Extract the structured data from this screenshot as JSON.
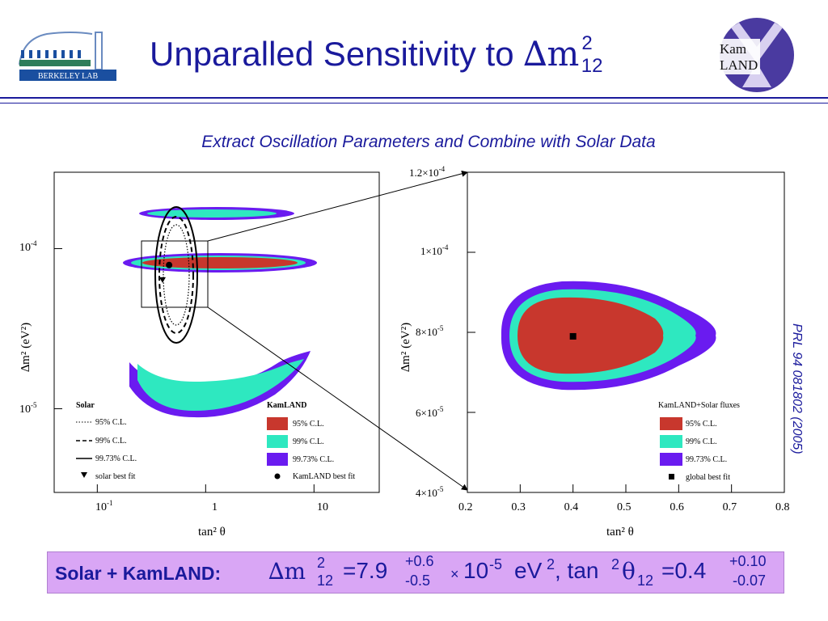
{
  "slide": {
    "title_text": "Unparalled Sensitivity to ",
    "title_symbol": "∆m",
    "title_sup": "2",
    "title_sub": "12",
    "subtitle": "Extract Oscillation Parameters and Combine with Solar Data",
    "citation": "PRL 94 081802 (2005)",
    "logos": {
      "left_text": "BERKELEY LAB",
      "right_text_1": "Kam",
      "right_text_2": "LAND"
    },
    "result": {
      "label": "Solar + KamLAND:",
      "dm_symbol": "∆m",
      "dm_sup": "2",
      "dm_sub": "12",
      "dm_value": "=7.9",
      "dm_err_plus": "+0.6",
      "dm_err_minus": "-0.5",
      "times": "×",
      "power_base": "10",
      "power_exp": "-5",
      "unit": "eV",
      "unit_sup": "2",
      "tan_text": ", tan",
      "tan_sup": "2",
      "theta": "θ",
      "theta_sub": "12",
      "tan_value": "=0.4",
      "tan_err_plus": "+0.10",
      "tan_err_minus": "-0.07"
    }
  },
  "colors": {
    "c95": "#c8372d",
    "c99": "#2ee8c0",
    "c9973": "#6a1bf0",
    "text_blue": "#1a1a9c",
    "banner": "#d9a6f5"
  },
  "chart_data": [
    {
      "type": "contour",
      "xscale": "log",
      "yscale": "log",
      "xlim": [
        0.04,
        40
      ],
      "ylim": [
        3e-06,
        0.0003
      ],
      "xlabel": "tan² θ",
      "ylabel": "∆m² (eV²)",
      "xticks": [
        "10",
        "-1",
        "1",
        "10"
      ],
      "yticks": [
        {
          "base": "10",
          "exp": "-4"
        },
        {
          "base": "10",
          "exp": "-5"
        }
      ],
      "best_fit": {
        "kamland": {
          "x": 0.46,
          "y": 7.9e-05
        },
        "solar": {
          "x": 0.4,
          "y": 6.4e-05
        }
      },
      "legend_solar": {
        "title": "Solar",
        "items": [
          "95% C.L.",
          "99% C.L.",
          "99.73% C.L.",
          "solar best fit"
        ]
      },
      "legend_kamland": {
        "title": "KamLAND",
        "items": [
          "95% C.L.",
          "99% C.L.",
          "99.73% C.L.",
          "KamLAND best fit"
        ]
      }
    },
    {
      "type": "contour",
      "xlim": [
        0.2,
        0.8
      ],
      "ylim": [
        4e-05,
        0.00012
      ],
      "xlabel": "tan² θ",
      "ylabel": "∆m² (eV²)",
      "xticks": [
        "0.2",
        "0.3",
        "0.4",
        "0.5",
        "0.6",
        "0.7",
        "0.8"
      ],
      "yticks": [
        {
          "pre": "4×",
          "base": "10",
          "exp": "-5"
        },
        {
          "pre": "6×",
          "base": "10",
          "exp": "-5"
        },
        {
          "pre": "8×",
          "base": "10",
          "exp": "-5"
        },
        {
          "pre": "1×",
          "base": "10",
          "exp": "-4"
        },
        {
          "pre": "1.2×",
          "base": "10",
          "exp": "-4"
        }
      ],
      "best_fit": {
        "x": 0.4,
        "y": 7.9e-05
      },
      "legend": {
        "title": "KamLAND+Solar fluxes",
        "items": [
          "95% C.L.",
          "99% C.L.",
          "99.73% C.L.",
          "global best fit"
        ]
      }
    }
  ]
}
